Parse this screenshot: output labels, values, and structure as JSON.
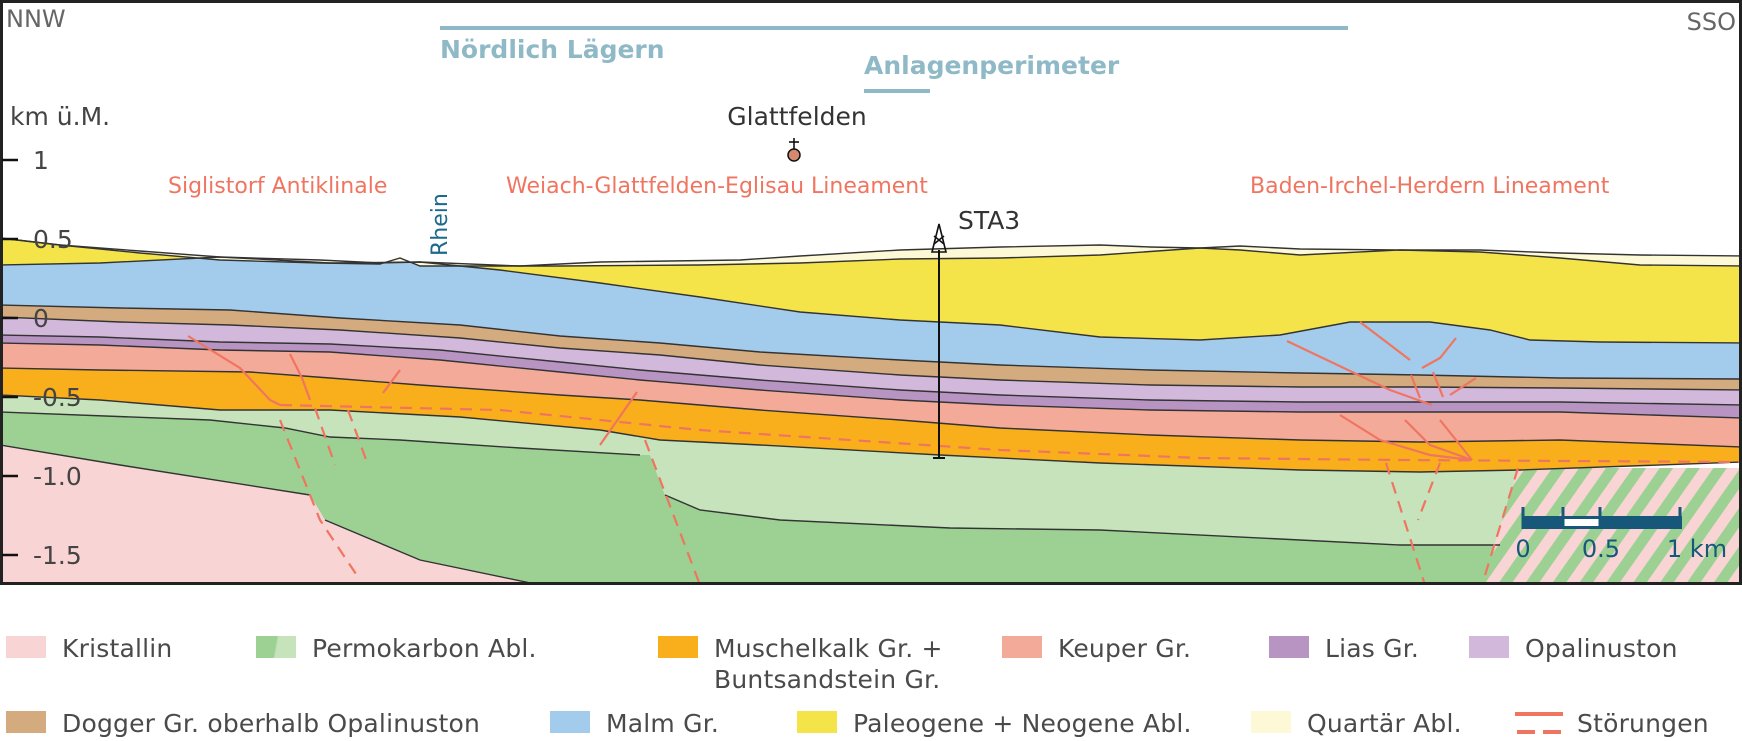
{
  "orientation": {
    "left": "NNW",
    "right": "SSO"
  },
  "axis": {
    "unit_label": "km ü.M.",
    "ticks": [
      {
        "value": 1,
        "label": "1"
      },
      {
        "value": 0.5,
        "label": "0.5"
      },
      {
        "value": 0,
        "label": "0"
      },
      {
        "value": -0.5,
        "label": "-0.5"
      },
      {
        "value": -1.0,
        "label": "-1.0"
      },
      {
        "value": -1.5,
        "label": "-1.5"
      }
    ]
  },
  "regions": {
    "siting_region": "Nördlich Lägern",
    "facility_perimeter": "Anlagenperimeter"
  },
  "places": {
    "village": "Glattfelden",
    "river": "Rhein",
    "borehole": "STA3"
  },
  "structures": {
    "left": "Siglistorf Antiklinale",
    "middle": "Weiach-Glattfelden-Eglisau Lineament",
    "right": "Baden-Irchel-Herdern Lineament"
  },
  "scale_bar": {
    "labels": [
      "0",
      "0.5",
      "1 km"
    ]
  },
  "colors": {
    "kristallin": "#f9d4d4",
    "permokarbon_dark": "#9dd193",
    "permokarbon_light": "#c6e3bc",
    "muschelkalk": "#f9ae1b",
    "keuper": "#f3aa98",
    "lias": "#b894c2",
    "opalinuston": "#d2b8da",
    "dogger": "#d3ab7e",
    "malm": "#a3cbeb",
    "tertiaer": "#f4e449",
    "quartaer": "#fdf9d6",
    "faults": "#f07560",
    "region_line": "#8fb9c7",
    "scale_bar": "#17587a",
    "rhein": "#1b6a8c",
    "borehole_marker": "#d38a6e"
  },
  "legend": [
    {
      "key": "kristallin",
      "label": "Kristallin"
    },
    {
      "key": "permokarbon",
      "label": "Permokarbon Abl."
    },
    {
      "key": "muschelkalk",
      "label": "Muschelkalk Gr. +",
      "label2": "Buntsandstein Gr."
    },
    {
      "key": "keuper",
      "label": "Keuper Gr."
    },
    {
      "key": "lias",
      "label": "Lias Gr."
    },
    {
      "key": "opalinuston",
      "label": "Opalinuston"
    },
    {
      "key": "dogger",
      "label": "Dogger Gr. oberhalb Opalinuston"
    },
    {
      "key": "malm",
      "label": "Malm Gr."
    },
    {
      "key": "tertiaer",
      "label": "Paleogene + Neogene Abl."
    },
    {
      "key": "quartaer",
      "label": "Quartär Abl."
    },
    {
      "key": "faults",
      "label": "Störungen"
    }
  ]
}
